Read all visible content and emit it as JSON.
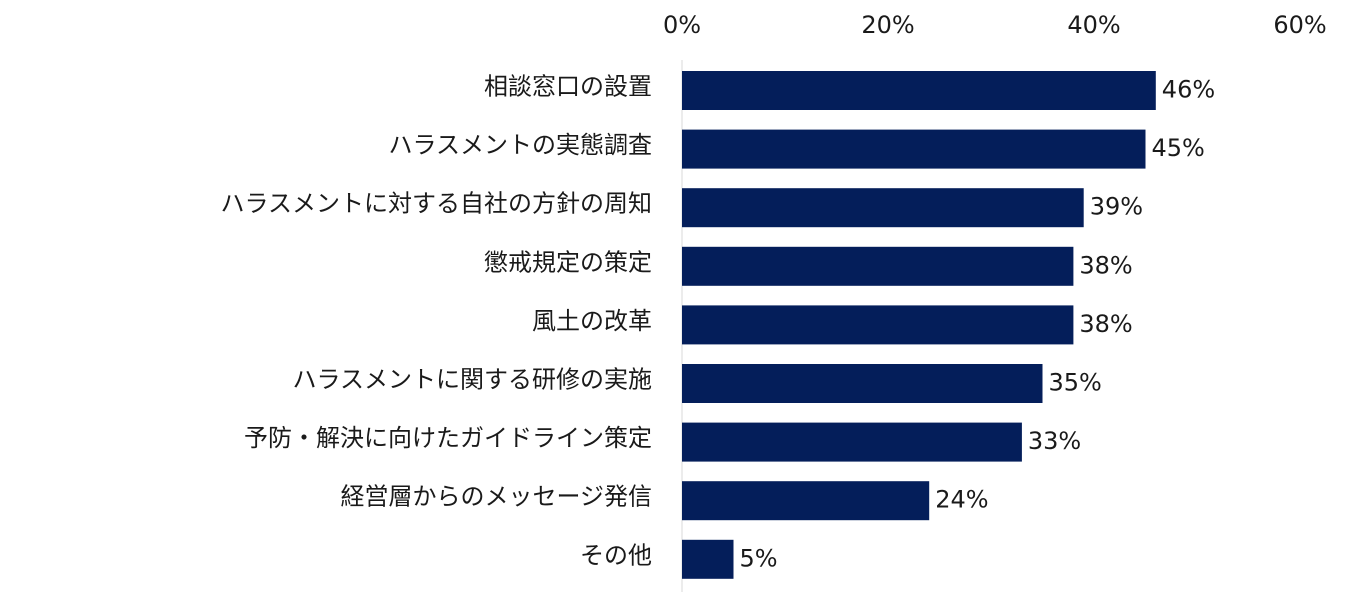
{
  "chart_data": {
    "type": "bar",
    "orientation": "horizontal",
    "categories": [
      "相談窓口の設置",
      "ハラスメントの実態調査",
      "ハラスメントに対する自社の方針の周知",
      "懲戒規定の策定",
      "風土の改革",
      "ハラスメントに関する研修の実施",
      "予防・解決に向けたガイドライン策定",
      "経営層からのメッセージ発信",
      "その他"
    ],
    "values": [
      46,
      45,
      39,
      38,
      38,
      35,
      33,
      24,
      5
    ],
    "value_labels": [
      "46%",
      "45%",
      "39%",
      "38%",
      "38%",
      "35%",
      "33%",
      "24%",
      "5%"
    ],
    "xlim": [
      0,
      60
    ],
    "x_ticks": [
      0,
      20,
      40,
      60
    ],
    "x_tick_labels": [
      "0%",
      "20%",
      "40%",
      "60%"
    ],
    "x_axis_position": "top",
    "grid": false,
    "legend": "none",
    "bar_color": "#041E5A",
    "title": "",
    "xlabel": "",
    "ylabel": ""
  }
}
